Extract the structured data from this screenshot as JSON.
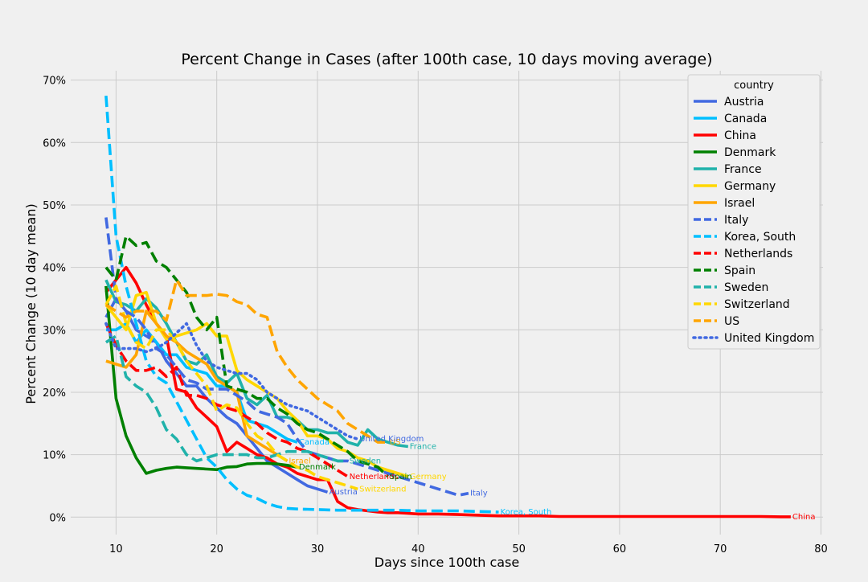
{
  "chart_data": {
    "type": "line",
    "title": "Percent Change in Cases (after 100th case, 10 days moving average)",
    "xlabel": "Days since 100th case",
    "ylabel": "Percent Change (10 day mean)",
    "xlim": [
      5.5,
      80.2
    ],
    "ylim": [
      -0.028,
      0.715
    ],
    "x_ticks": [
      10,
      20,
      30,
      40,
      50,
      60,
      70,
      80
    ],
    "y_ticks": [
      0,
      0.1,
      0.2,
      0.3,
      0.4,
      0.5,
      0.6,
      0.7
    ],
    "y_tick_labels": [
      "0%",
      "10%",
      "20%",
      "30%",
      "40%",
      "50%",
      "60%",
      "70%"
    ],
    "grid": true,
    "legend": {
      "title": "country",
      "placement": "top-right"
    },
    "series": [
      {
        "name": "Austria",
        "label": "Austria",
        "color": "#4169e1",
        "dash": "solid",
        "x": [
          9,
          10,
          11,
          12,
          13,
          14,
          15,
          16,
          17,
          18,
          19,
          20,
          21,
          22,
          23,
          24,
          25,
          26,
          27,
          28,
          29,
          30,
          31
        ],
        "y": [
          0.32,
          0.35,
          0.33,
          0.3,
          0.29,
          0.28,
          0.25,
          0.23,
          0.21,
          0.21,
          0.19,
          0.175,
          0.16,
          0.15,
          0.13,
          0.11,
          0.09,
          0.08,
          0.07,
          0.06,
          0.05,
          0.045,
          0.04
        ]
      },
      {
        "name": "Canada",
        "label": "Canada",
        "color": "#00bfff",
        "dash": "solid",
        "x": [
          9,
          10,
          11,
          12,
          13,
          14,
          15,
          16,
          17,
          18,
          19,
          20,
          21,
          22,
          23,
          24,
          25,
          26,
          27,
          28
        ],
        "y": [
          0.3,
          0.3,
          0.31,
          0.28,
          0.3,
          0.28,
          0.26,
          0.26,
          0.24,
          0.235,
          0.23,
          0.21,
          0.21,
          0.2,
          0.155,
          0.15,
          0.145,
          0.135,
          0.125,
          0.12
        ]
      },
      {
        "name": "China",
        "label": "China",
        "color": "#ff0000",
        "dash": "solid",
        "x": [
          9,
          10,
          11,
          12,
          13,
          14,
          15,
          16,
          17,
          18,
          19,
          20,
          21,
          22,
          23,
          24,
          25,
          26,
          27,
          28,
          29,
          30,
          31,
          32,
          33,
          34,
          35,
          36,
          37,
          38,
          39,
          40,
          42,
          44,
          46,
          48,
          50,
          52,
          54,
          56,
          58,
          60,
          62,
          64,
          66,
          68,
          70,
          72,
          74,
          76,
          77
        ],
        "y": [
          0.36,
          0.38,
          0.4,
          0.375,
          0.34,
          0.31,
          0.29,
          0.205,
          0.2,
          0.175,
          0.16,
          0.145,
          0.105,
          0.12,
          0.11,
          0.1,
          0.095,
          0.085,
          0.08,
          0.07,
          0.065,
          0.06,
          0.06,
          0.025,
          0.015,
          0.012,
          0.01,
          0.008,
          0.007,
          0.007,
          0.006,
          0.005,
          0.005,
          0.004,
          0.003,
          0.002,
          0.002,
          0.002,
          0.001,
          0.001,
          0.001,
          0.001,
          0.001,
          0.001,
          0.001,
          0.001,
          0.001,
          0.001,
          0.001,
          0.0005,
          0.0005
        ]
      },
      {
        "name": "Denmark",
        "label": "Denmark",
        "color": "#008000",
        "dash": "solid",
        "x": [
          9,
          10,
          11,
          12,
          13,
          14,
          15,
          16,
          17,
          18,
          19,
          20,
          21,
          22,
          23,
          24,
          25,
          26,
          27,
          28
        ],
        "y": [
          0.37,
          0.19,
          0.13,
          0.095,
          0.07,
          0.075,
          0.078,
          0.08,
          0.079,
          0.078,
          0.077,
          0.076,
          0.08,
          0.081,
          0.085,
          0.086,
          0.086,
          0.085,
          0.083,
          0.08
        ]
      },
      {
        "name": "France",
        "label": "France",
        "color": "#20b2aa",
        "dash": "solid",
        "x": [
          9,
          10,
          11,
          12,
          13,
          14,
          15,
          16,
          17,
          18,
          19,
          20,
          21,
          22,
          23,
          24,
          25,
          26,
          27,
          28,
          29,
          30,
          31,
          32,
          33,
          34,
          35,
          36,
          37,
          38,
          39
        ],
        "y": [
          0.38,
          0.345,
          0.34,
          0.33,
          0.35,
          0.335,
          0.31,
          0.28,
          0.25,
          0.245,
          0.26,
          0.225,
          0.215,
          0.23,
          0.19,
          0.18,
          0.195,
          0.16,
          0.16,
          0.155,
          0.14,
          0.14,
          0.135,
          0.135,
          0.12,
          0.115,
          0.14,
          0.125,
          0.12,
          0.115,
          0.113
        ]
      },
      {
        "name": "Germany",
        "label": "Germany",
        "color": "#ffd700",
        "dash": "solid",
        "x": [
          9,
          10,
          11,
          12,
          13,
          14,
          15,
          16,
          17,
          18,
          19,
          20,
          21,
          22,
          23,
          24,
          25,
          26,
          27,
          28,
          29,
          30,
          31,
          32,
          33,
          34,
          35,
          36,
          37,
          38,
          39
        ],
        "y": [
          0.34,
          0.32,
          0.3,
          0.355,
          0.36,
          0.31,
          0.285,
          0.29,
          0.295,
          0.3,
          0.31,
          0.29,
          0.29,
          0.235,
          0.22,
          0.21,
          0.2,
          0.19,
          0.17,
          0.155,
          0.13,
          0.13,
          0.125,
          0.11,
          0.105,
          0.095,
          0.09,
          0.08,
          0.075,
          0.07,
          0.065
        ]
      },
      {
        "name": "Israel",
        "label": "Israel",
        "color": "#ffa500",
        "dash": "solid",
        "x": [
          9,
          10,
          11,
          12,
          13,
          14,
          15,
          16,
          17,
          18,
          19,
          20,
          21,
          22,
          23,
          24,
          25,
          26,
          27
        ],
        "y": [
          0.25,
          0.245,
          0.24,
          0.26,
          0.33,
          0.31,
          0.29,
          0.28,
          0.265,
          0.255,
          0.245,
          0.22,
          0.21,
          0.2,
          0.13,
          0.12,
          0.11,
          0.1,
          0.09
        ]
      },
      {
        "name": "Italy",
        "label": "Italy",
        "color": "#4169e1",
        "dash": "dash",
        "x": [
          9,
          10,
          11,
          12,
          13,
          14,
          15,
          16,
          17,
          18,
          19,
          20,
          21,
          22,
          23,
          24,
          25,
          26,
          27,
          28,
          29,
          30,
          31,
          32,
          33,
          34,
          35,
          36,
          37,
          38,
          39,
          40,
          41,
          42,
          43,
          44,
          45
        ],
        "y": [
          0.48,
          0.35,
          0.33,
          0.32,
          0.3,
          0.27,
          0.26,
          0.24,
          0.22,
          0.215,
          0.205,
          0.205,
          0.205,
          0.195,
          0.185,
          0.17,
          0.165,
          0.16,
          0.15,
          0.125,
          0.105,
          0.1,
          0.095,
          0.09,
          0.09,
          0.085,
          0.08,
          0.075,
          0.07,
          0.065,
          0.06,
          0.055,
          0.05,
          0.045,
          0.04,
          0.035,
          0.038
        ]
      },
      {
        "name": "Korea, South",
        "label": "Korea, South",
        "color": "#00bfff",
        "dash": "dash",
        "x": [
          9,
          10,
          11,
          12,
          13,
          14,
          15,
          16,
          17,
          18,
          19,
          20,
          21,
          22,
          23,
          24,
          25,
          26,
          27,
          28,
          30,
          32,
          34,
          36,
          38,
          40,
          42,
          44,
          46,
          48
        ],
        "y": [
          0.675,
          0.45,
          0.37,
          0.31,
          0.25,
          0.225,
          0.215,
          0.185,
          0.155,
          0.125,
          0.095,
          0.08,
          0.06,
          0.045,
          0.035,
          0.03,
          0.022,
          0.017,
          0.014,
          0.013,
          0.012,
          0.011,
          0.011,
          0.011,
          0.011,
          0.01,
          0.01,
          0.01,
          0.009,
          0.008
        ]
      },
      {
        "name": "Netherlands",
        "label": "Netherlands",
        "color": "#ff0000",
        "dash": "dash",
        "x": [
          9,
          10,
          11,
          12,
          13,
          14,
          15,
          16,
          17,
          18,
          19,
          20,
          21,
          22,
          23,
          24,
          25,
          26,
          27,
          28,
          29,
          30,
          31,
          32,
          33
        ],
        "y": [
          0.31,
          0.275,
          0.25,
          0.235,
          0.235,
          0.24,
          0.225,
          0.24,
          0.195,
          0.195,
          0.19,
          0.18,
          0.175,
          0.17,
          0.16,
          0.15,
          0.135,
          0.125,
          0.12,
          0.11,
          0.105,
          0.095,
          0.085,
          0.075,
          0.065
        ]
      },
      {
        "name": "Spain",
        "label": "Spain",
        "color": "#008000",
        "dash": "dash",
        "x": [
          9,
          10,
          11,
          12,
          13,
          14,
          15,
          16,
          17,
          18,
          19,
          20,
          21,
          22,
          23,
          24,
          25,
          26,
          27,
          28,
          29,
          30,
          31,
          32,
          33,
          34,
          35,
          36,
          37
        ],
        "y": [
          0.4,
          0.38,
          0.45,
          0.435,
          0.44,
          0.41,
          0.4,
          0.38,
          0.36,
          0.32,
          0.3,
          0.32,
          0.21,
          0.205,
          0.2,
          0.19,
          0.19,
          0.175,
          0.165,
          0.15,
          0.14,
          0.135,
          0.125,
          0.115,
          0.105,
          0.09,
          0.085,
          0.08,
          0.065
        ]
      },
      {
        "name": "Sweden",
        "label": "Sweden",
        "color": "#20b2aa",
        "dash": "dash",
        "x": [
          9,
          10,
          11,
          12,
          13,
          14,
          15,
          16,
          17,
          18,
          19,
          20,
          21,
          22,
          23,
          24,
          25,
          26,
          27,
          28,
          29,
          30,
          31,
          32,
          33
        ],
        "y": [
          0.28,
          0.29,
          0.225,
          0.21,
          0.2,
          0.175,
          0.14,
          0.125,
          0.1,
          0.09,
          0.095,
          0.1,
          0.1,
          0.1,
          0.1,
          0.095,
          0.095,
          0.1,
          0.105,
          0.105,
          0.105,
          0.1,
          0.095,
          0.09,
          0.09
        ]
      },
      {
        "name": "Switzerland",
        "label": "Switzerland",
        "color": "#ffd700",
        "dash": "dash",
        "x": [
          9,
          10,
          11,
          12,
          13,
          14,
          15,
          16,
          17,
          18,
          19,
          20,
          21,
          22,
          23,
          24,
          25,
          26,
          27,
          28,
          29,
          30,
          31,
          32,
          33,
          34
        ],
        "y": [
          0.34,
          0.37,
          0.31,
          0.28,
          0.27,
          0.3,
          0.3,
          0.28,
          0.25,
          0.23,
          0.21,
          0.17,
          0.18,
          0.175,
          0.15,
          0.13,
          0.12,
          0.1,
          0.09,
          0.08,
          0.075,
          0.065,
          0.06,
          0.055,
          0.05,
          0.045
        ]
      },
      {
        "name": "US",
        "label": "US",
        "color": "#ffa500",
        "dash": "dash",
        "x": [
          9,
          10,
          11,
          12,
          13,
          14,
          15,
          16,
          17,
          18,
          19,
          20,
          21,
          22,
          23,
          24,
          25,
          26,
          27,
          28,
          29,
          30,
          31,
          32,
          33,
          34,
          35,
          36,
          37
        ],
        "y": [
          0.34,
          0.33,
          0.32,
          0.33,
          0.33,
          0.33,
          0.315,
          0.38,
          0.355,
          0.355,
          0.355,
          0.357,
          0.355,
          0.345,
          0.34,
          0.325,
          0.32,
          0.265,
          0.24,
          0.22,
          0.205,
          0.19,
          0.18,
          0.17,
          0.15,
          0.14,
          0.13,
          0.12,
          0.12
        ]
      },
      {
        "name": "United Kingdom",
        "label": "United Kingdom",
        "color": "#4169e1",
        "dash": "dot",
        "x": [
          9,
          10,
          11,
          12,
          13,
          14,
          15,
          16,
          17,
          18,
          19,
          20,
          21,
          22,
          23,
          24,
          25,
          26,
          27,
          28,
          29,
          30,
          31,
          32,
          33,
          34
        ],
        "y": [
          0.31,
          0.27,
          0.27,
          0.27,
          0.265,
          0.27,
          0.28,
          0.295,
          0.31,
          0.275,
          0.25,
          0.24,
          0.235,
          0.23,
          0.23,
          0.22,
          0.2,
          0.19,
          0.18,
          0.175,
          0.17,
          0.16,
          0.15,
          0.14,
          0.13,
          0.125
        ]
      }
    ]
  }
}
